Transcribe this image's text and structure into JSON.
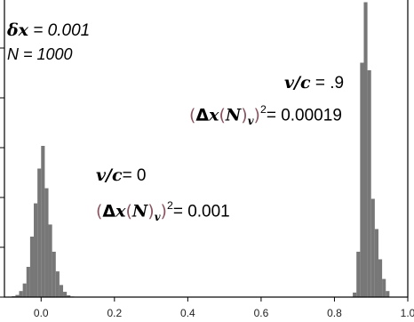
{
  "chart_data": {
    "type": "bar",
    "xlim": [
      -0.1,
      1.0
    ],
    "x_ticks": [
      "0.0",
      "0.2",
      "0.4",
      "0.6",
      "0.8",
      "1.0"
    ],
    "x_tick_values": [
      0.0,
      0.2,
      0.4,
      0.6,
      0.8,
      1.0
    ],
    "grid": false,
    "bin_width": 0.01,
    "series": [
      {
        "bin_centers": [
          -0.085,
          -0.075,
          -0.065,
          -0.055,
          -0.045,
          -0.035,
          -0.025,
          -0.015,
          -0.005,
          0.005,
          0.015,
          0.025,
          0.035,
          0.045,
          0.055,
          0.065,
          0.075,
          0.085
        ],
        "values": [
          0.002,
          0.006,
          0.014,
          0.04,
          0.09,
          0.2,
          0.4,
          0.62,
          0.85,
          1.0,
          0.72,
          0.48,
          0.3,
          0.17,
          0.08,
          0.035,
          0.012,
          0.004
        ]
      },
      {
        "bin_centers": [
          0.855,
          0.865,
          0.875,
          0.885,
          0.895,
          0.905,
          0.915,
          0.925,
          0.935,
          0.945
        ],
        "values": [
          0.03,
          0.3,
          1.55,
          1.95,
          1.5,
          0.65,
          0.45,
          0.25,
          0.12,
          0.04
        ]
      }
    ]
  },
  "annotations": {
    "params_dx_symbol": "δx",
    "params_dx_value": " = 0.001",
    "params_n": "N = 1000",
    "v0_symbol": "v/c",
    "v0_value": "= 0",
    "v0_var_value": "= 0.001",
    "v9_symbol": "v/c",
    "v9_value": " = .9",
    "v9_var_value": "= 0.00019",
    "var_delta": "Δ",
    "var_x": "x",
    "var_n": "N",
    "var_sub": "v",
    "var_sup": "2",
    "paren_open": "(",
    "paren_close": ")"
  }
}
